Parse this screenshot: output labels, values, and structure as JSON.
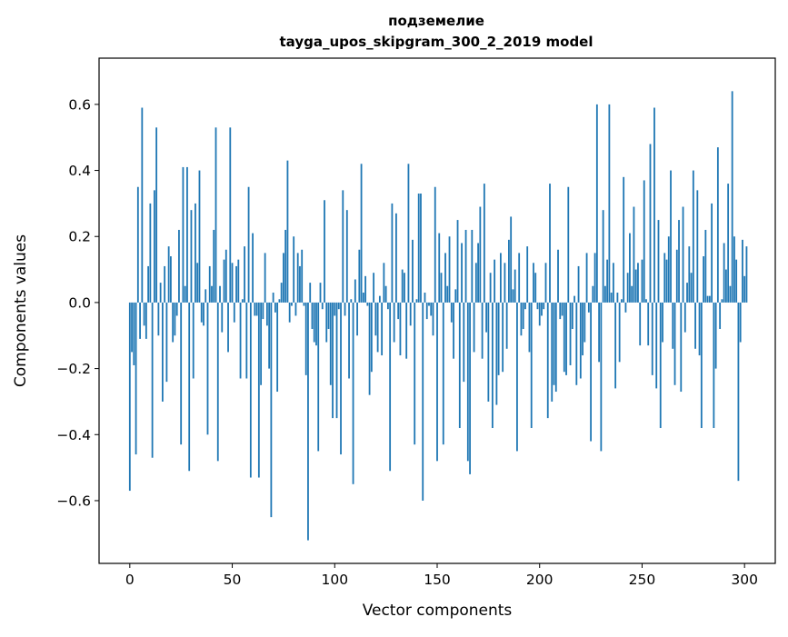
{
  "chart_data": {
    "type": "bar",
    "title_line1": "подземелие",
    "title_line2": "tayga_upos_skipgram_300_2_2019 model",
    "xlabel": "Vector components",
    "ylabel": "Components values",
    "xlim": [
      -15,
      315
    ],
    "ylim": [
      -0.79,
      0.74
    ],
    "xticks": [
      0,
      50,
      100,
      150,
      200,
      250,
      300
    ],
    "xtick_labels": [
      "0",
      "50",
      "100",
      "150",
      "200",
      "250",
      "300"
    ],
    "yticks": [
      -0.6,
      -0.4,
      -0.2,
      0.0,
      0.2,
      0.4,
      0.6
    ],
    "ytick_labels": [
      "−0.6",
      "−0.4",
      "−0.2",
      "0.0",
      "0.2",
      "0.4",
      "0.6"
    ],
    "bar_color": "#1f77b4",
    "values": [
      -0.57,
      -0.15,
      -0.19,
      -0.46,
      0.35,
      -0.11,
      0.59,
      -0.07,
      -0.11,
      0.11,
      0.3,
      -0.47,
      0.34,
      0.53,
      -0.1,
      0.06,
      -0.3,
      0.11,
      -0.24,
      0.17,
      0.14,
      -0.12,
      -0.1,
      -0.04,
      0.22,
      -0.43,
      0.41,
      0.05,
      0.41,
      -0.51,
      0.28,
      -0.23,
      0.3,
      0.12,
      0.4,
      -0.06,
      -0.07,
      0.04,
      -0.4,
      0.11,
      0.05,
      0.22,
      0.53,
      -0.48,
      0.05,
      -0.09,
      0.13,
      0.16,
      -0.15,
      0.53,
      0.12,
      -0.06,
      0.11,
      0.13,
      -0.23,
      0.01,
      0.17,
      -0.23,
      0.35,
      -0.53,
      0.21,
      -0.04,
      -0.04,
      -0.53,
      -0.25,
      -0.05,
      0.15,
      -0.07,
      -0.2,
      -0.65,
      0.03,
      -0.03,
      -0.27,
      0.01,
      0.06,
      0.15,
      0.22,
      0.43,
      -0.06,
      -0.01,
      0.2,
      -0.04,
      0.15,
      0.11,
      0.16,
      -0.01,
      -0.22,
      -0.72,
      0.06,
      -0.08,
      -0.12,
      -0.13,
      -0.45,
      0.06,
      -0.02,
      0.31,
      -0.12,
      -0.08,
      -0.25,
      -0.35,
      -0.04,
      -0.35,
      -0.02,
      -0.46,
      0.34,
      -0.04,
      0.28,
      -0.23,
      0.01,
      -0.55,
      0.07,
      -0.1,
      0.16,
      0.42,
      0.03,
      0.08,
      -0.01,
      -0.28,
      -0.21,
      0.09,
      -0.1,
      -0.15,
      0.02,
      -0.16,
      0.12,
      0.05,
      -0.02,
      -0.51,
      0.3,
      -0.12,
      0.27,
      -0.05,
      -0.16,
      0.1,
      0.09,
      -0.17,
      0.42,
      -0.07,
      0.19,
      -0.43,
      0.01,
      0.33,
      0.33,
      -0.6,
      0.03,
      -0.05,
      -0.01,
      -0.04,
      -0.1,
      0.35,
      -0.48,
      0.21,
      0.09,
      -0.43,
      0.15,
      0.05,
      0.2,
      -0.06,
      -0.17,
      0.04,
      0.25,
      -0.38,
      0.18,
      -0.24,
      0.22,
      -0.48,
      -0.52,
      0.22,
      -0.15,
      0.12,
      0.18,
      0.29,
      -0.17,
      0.36,
      -0.09,
      -0.3,
      0.09,
      -0.38,
      0.13,
      -0.31,
      -0.22,
      0.15,
      -0.21,
      0.12,
      -0.14,
      0.19,
      0.26,
      0.04,
      0.1,
      -0.45,
      0.15,
      -0.1,
      -0.08,
      -0.02,
      0.17,
      -0.15,
      -0.38,
      0.12,
      0.09,
      -0.02,
      -0.07,
      -0.04,
      -0.02,
      0.12,
      -0.35,
      0.36,
      -0.3,
      -0.25,
      -0.27,
      0.16,
      -0.05,
      -0.04,
      -0.21,
      -0.22,
      0.35,
      -0.19,
      -0.08,
      0.02,
      -0.25,
      0.11,
      -0.23,
      -0.16,
      -0.12,
      0.15,
      -0.03,
      -0.42,
      0.05,
      0.15,
      0.6,
      -0.18,
      -0.45,
      0.28,
      0.05,
      0.13,
      0.6,
      0.03,
      0.12,
      -0.26,
      0.03,
      -0.18,
      0.01,
      0.38,
      -0.03,
      0.09,
      0.21,
      0.05,
      0.29,
      0.1,
      0.12,
      -0.13,
      0.13,
      0.37,
      0.01,
      -0.13,
      0.48,
      -0.22,
      0.59,
      -0.26,
      0.25,
      -0.38,
      -0.12,
      0.15,
      0.13,
      0.2,
      0.4,
      -0.14,
      -0.25,
      0.16,
      0.25,
      -0.27,
      0.29,
      -0.09,
      0.06,
      0.17,
      0.09,
      0.4,
      -0.14,
      0.34,
      -0.16,
      -0.38,
      0.14,
      0.22,
      0.02,
      0.02,
      0.3,
      -0.38,
      -0.2,
      0.47,
      -0.08,
      0.01,
      0.18,
      0.1,
      0.36,
      0.05,
      0.64,
      0.2,
      0.13,
      -0.54,
      -0.12,
      0.19,
      0.08,
      0.17
    ]
  }
}
